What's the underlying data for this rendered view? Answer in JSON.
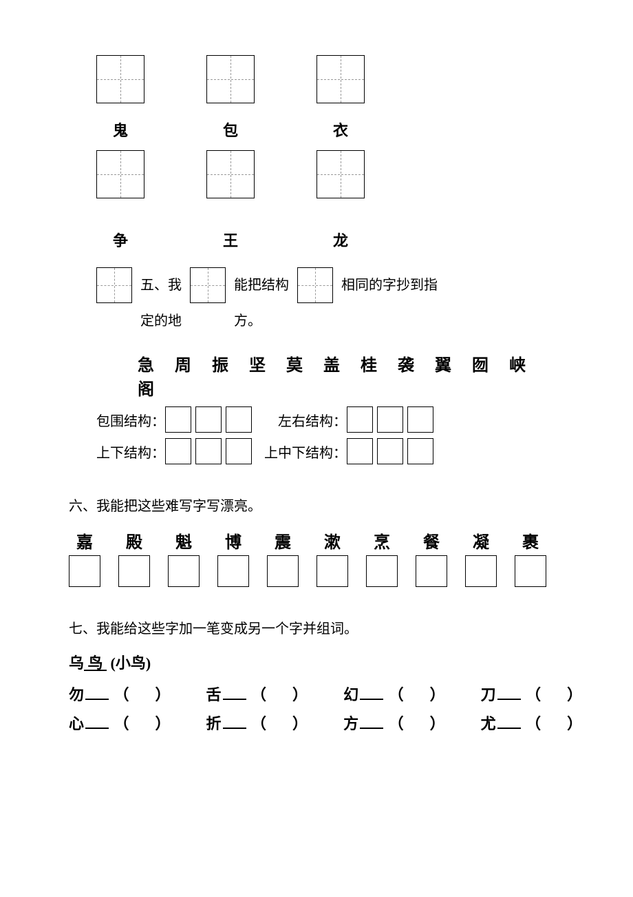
{
  "row1_labels": [
    "鬼",
    "包",
    "衣"
  ],
  "row2_labels": [
    "争",
    "王",
    "龙"
  ],
  "q5": {
    "title_parts": [
      "五、我",
      "能把结构",
      "相同的字抄到指",
      "定的地",
      "方。"
    ],
    "chars": "急 周 振 坚 莫 盖 桂 袭 翼 囫 峡 阁",
    "groups": [
      {
        "label": "包围结构：",
        "boxes": 3
      },
      {
        "label": "左右结构：",
        "boxes": 3
      },
      {
        "label": "上下结构：",
        "boxes": 3
      },
      {
        "label": "上中下结构：",
        "boxes": 3
      }
    ]
  },
  "q6": {
    "title": "六、我能把这些难写字写漂亮。",
    "chars": [
      "嘉",
      "殿",
      "魁",
      "博",
      "震",
      "漱",
      "烹",
      "餐",
      "凝",
      "裹"
    ]
  },
  "q7": {
    "title": "七、我能给这些字加一笔变成另一个字并组词。",
    "example_src": "乌",
    "example_dst": "鸟",
    "example_word": "(小鸟)",
    "rows": [
      [
        "勿",
        "舌",
        "幻",
        "刀"
      ],
      [
        "心",
        "折",
        "方",
        "尤"
      ]
    ],
    "paren": "（　）"
  }
}
